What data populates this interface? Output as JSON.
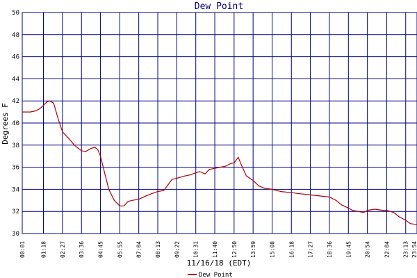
{
  "chart_data": {
    "type": "line",
    "title": "Dew Point",
    "xlabel": "11/16/18 (EDT)",
    "ylabel": "Degrees F",
    "ylim": [
      30,
      50
    ],
    "yticks": [
      30,
      32,
      34,
      36,
      38,
      40,
      42,
      44,
      46,
      48,
      50
    ],
    "xticks": [
      "00:01",
      "01:18",
      "02:27",
      "03:36",
      "04:45",
      "05:55",
      "07:04",
      "08:13",
      "09:22",
      "10:31",
      "11:40",
      "12:50",
      "13:59",
      "15:08",
      "16:18",
      "17:27",
      "18:36",
      "19:45",
      "20:54",
      "22:04",
      "23:13"
    ],
    "x_end_label": "23:54",
    "grid": true,
    "line_color": "#b00000",
    "grid_color": "#000080",
    "legend_position": "bottom-center",
    "series": [
      {
        "name": "Dew Point",
        "x": [
          "00:01",
          "00:30",
          "00:50",
          "01:05",
          "01:18",
          "01:30",
          "01:40",
          "01:55",
          "02:10",
          "02:27",
          "02:50",
          "03:10",
          "03:25",
          "03:36",
          "03:50",
          "04:10",
          "04:25",
          "04:35",
          "04:45",
          "05:00",
          "05:15",
          "05:35",
          "05:55",
          "06:10",
          "06:25",
          "06:40",
          "07:04",
          "07:30",
          "07:50",
          "08:13",
          "08:35",
          "08:50",
          "09:05",
          "09:22",
          "09:50",
          "10:10",
          "10:31",
          "10:45",
          "11:05",
          "11:20",
          "11:40",
          "12:00",
          "12:20",
          "12:35",
          "12:50",
          "13:05",
          "13:20",
          "13:35",
          "13:59",
          "14:20",
          "14:40",
          "15:08",
          "15:40",
          "16:18",
          "16:50",
          "17:27",
          "18:00",
          "18:36",
          "19:00",
          "19:20",
          "19:45",
          "20:00",
          "20:20",
          "20:40",
          "20:54",
          "21:20",
          "21:50",
          "22:04",
          "22:30",
          "22:50",
          "23:13",
          "23:30",
          "23:54"
        ],
        "values": [
          41.0,
          41.0,
          41.1,
          41.3,
          41.6,
          41.9,
          42.0,
          41.8,
          40.5,
          39.2,
          38.6,
          38.0,
          37.7,
          37.5,
          37.4,
          37.7,
          37.8,
          37.6,
          37.0,
          35.5,
          34.0,
          33.0,
          32.5,
          32.5,
          32.9,
          33.0,
          33.1,
          33.4,
          33.6,
          33.8,
          33.9,
          34.4,
          34.9,
          35.0,
          35.2,
          35.3,
          35.5,
          35.6,
          35.4,
          35.8,
          35.9,
          36.0,
          36.1,
          36.3,
          36.4,
          36.9,
          36.0,
          35.2,
          34.8,
          34.3,
          34.1,
          34.0,
          33.8,
          33.7,
          33.6,
          33.5,
          33.4,
          33.3,
          33.0,
          32.6,
          32.3,
          32.1,
          32.0,
          31.9,
          32.1,
          32.2,
          32.1,
          32.1,
          31.9,
          31.5,
          31.2,
          30.9,
          30.8
        ]
      }
    ]
  }
}
